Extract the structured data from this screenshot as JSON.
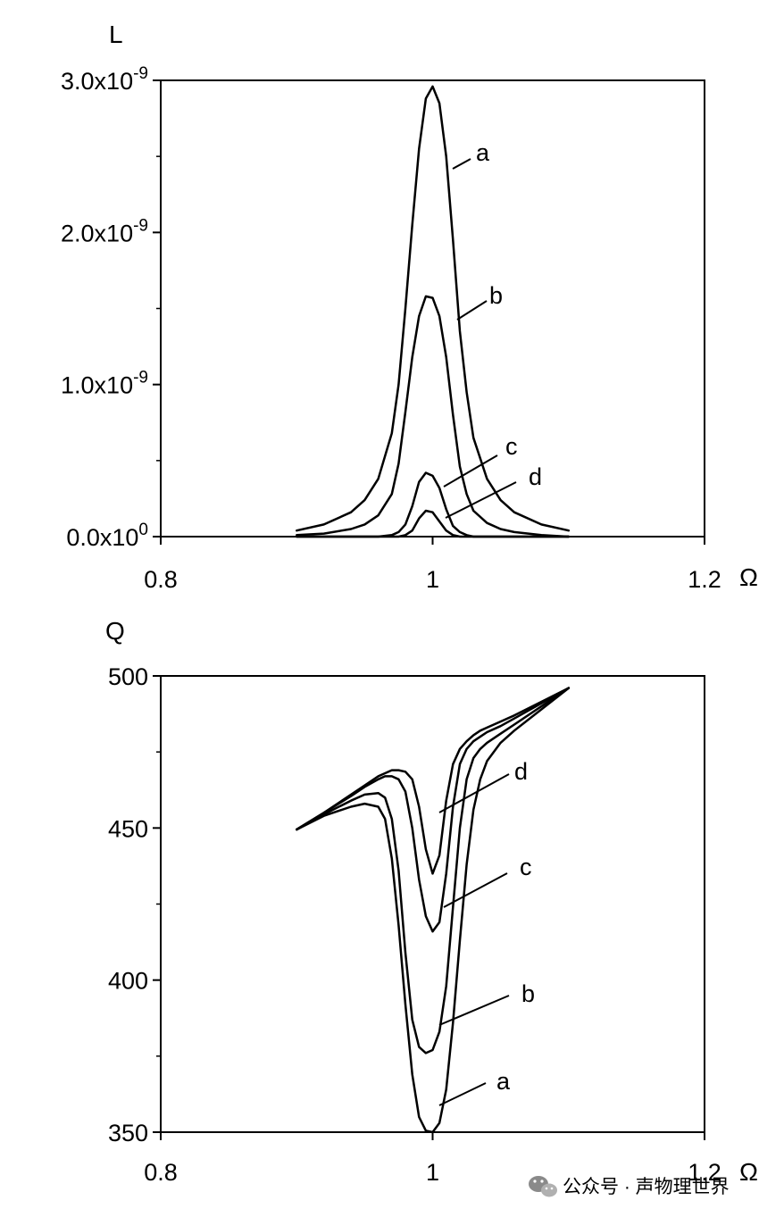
{
  "chart_data": [
    {
      "type": "line",
      "ylabel": "L",
      "xlabel": "Ω",
      "xlim": [
        0.8,
        1.2
      ],
      "ylim": [
        0,
        3e-09
      ],
      "x_ticks": [
        {
          "value": 0.8,
          "label": "0.8"
        },
        {
          "value": 1.0,
          "label": "1"
        },
        {
          "value": 1.2,
          "label": "1.2"
        }
      ],
      "y_ticks": [
        {
          "value": 0,
          "mantissa": "0.0x10",
          "exponent": "0"
        },
        {
          "value": 1e-09,
          "mantissa": "1.0x10",
          "exponent": "-9"
        },
        {
          "value": 2e-09,
          "mantissa": "2.0x10",
          "exponent": "-9"
        },
        {
          "value": 3e-09,
          "mantissa": "3.0x10",
          "exponent": "-9"
        }
      ],
      "minor_y_ticks": [
        5e-10,
        1.5e-09,
        2.5e-09
      ],
      "x": [
        0.9,
        0.92,
        0.94,
        0.95,
        0.96,
        0.97,
        0.975,
        0.98,
        0.985,
        0.99,
        0.995,
        1.0,
        1.005,
        1.01,
        1.015,
        1.02,
        1.025,
        1.03,
        1.04,
        1.05,
        1.06,
        1.08,
        1.1
      ],
      "series": [
        {
          "name": "a",
          "values": [
            4e-11,
            8e-11,
            1.6e-10,
            2.4e-10,
            3.8e-10,
            6.8e-10,
            1e-09,
            1.5e-09,
            2.05e-09,
            2.55e-09,
            2.88e-09,
            2.96e-09,
            2.85e-09,
            2.5e-09,
            1.95e-09,
            1.35e-09,
            9.5e-10,
            6.5e-10,
            3.8e-10,
            2.4e-10,
            1.6e-10,
            8e-11,
            4e-11
          ]
        },
        {
          "name": "b",
          "values": [
            1e-11,
            2e-11,
            5e-11,
            8e-11,
            1.4e-10,
            2.8e-10,
            4.8e-10,
            8.2e-10,
            1.18e-09,
            1.45e-09,
            1.58e-09,
            1.57e-09,
            1.45e-09,
            1.18e-09,
            8e-10,
            4.6e-10,
            2.8e-10,
            1.7e-10,
            9e-11,
            5e-11,
            3e-11,
            1e-11,
            0.0
          ]
        },
        {
          "name": "c",
          "values": [
            0.0,
            0.0,
            0.0,
            0.0,
            0.0,
            1e-11,
            3e-11,
            8e-11,
            2e-10,
            3.6e-10,
            4.2e-10,
            4e-10,
            3.2e-10,
            1.8e-10,
            7e-11,
            3e-11,
            1e-11,
            0.0,
            0.0,
            0.0,
            0.0,
            0.0,
            0.0
          ]
        },
        {
          "name": "d",
          "values": [
            0.0,
            0.0,
            0.0,
            0.0,
            0.0,
            0.0,
            0.0,
            1e-11,
            4e-11,
            1.2e-10,
            1.7e-10,
            1.6e-10,
            1e-10,
            4e-11,
            1e-11,
            0.0,
            0.0,
            0.0,
            0.0,
            0.0,
            0.0,
            0.0,
            0.0
          ]
        }
      ],
      "grid": false,
      "legend": "curve letters placed beside curves"
    },
    {
      "type": "line",
      "ylabel": "Q",
      "xlabel": "Ω",
      "xlim": [
        0.8,
        1.2
      ],
      "ylim": [
        350,
        500
      ],
      "x_ticks": [
        {
          "value": 0.8,
          "label": "0.8"
        },
        {
          "value": 1.0,
          "label": "1"
        },
        {
          "value": 1.2,
          "label": "1.2"
        }
      ],
      "y_ticks": [
        {
          "value": 350,
          "label": "350"
        },
        {
          "value": 400,
          "label": "400"
        },
        {
          "value": 450,
          "label": "450"
        },
        {
          "value": 500,
          "label": "500"
        }
      ],
      "minor_y_ticks": [
        375,
        425,
        475
      ],
      "x": [
        0.9,
        0.92,
        0.94,
        0.95,
        0.96,
        0.965,
        0.97,
        0.975,
        0.98,
        0.985,
        0.99,
        0.995,
        1.0,
        1.005,
        1.01,
        1.015,
        1.02,
        1.025,
        1.03,
        1.035,
        1.04,
        1.05,
        1.06,
        1.08,
        1.1
      ],
      "series": [
        {
          "name": "a",
          "values": [
            449.5,
            454.0,
            457.0,
            458.0,
            457.0,
            453.0,
            440.0,
            418.0,
            392.0,
            369.0,
            355.0,
            350.5,
            350.0,
            353.0,
            364.0,
            386.0,
            413.0,
            438.0,
            456.0,
            466.0,
            472.0,
            478.0,
            482.0,
            489.0,
            496.0
          ]
        },
        {
          "name": "b",
          "values": [
            449.5,
            454.5,
            459.0,
            461.0,
            461.5,
            460.0,
            453.0,
            436.0,
            409.0,
            387.0,
            378.0,
            376.0,
            377.0,
            383.0,
            398.0,
            424.0,
            450.0,
            466.0,
            473.0,
            476.0,
            478.0,
            481.0,
            484.0,
            490.0,
            496.0
          ]
        },
        {
          "name": "c",
          "values": [
            449.5,
            455.0,
            460.5,
            463.5,
            466.0,
            467.0,
            467.0,
            466.0,
            462.0,
            450.0,
            433.0,
            421.0,
            416.0,
            419.0,
            435.0,
            457.0,
            471.0,
            476.0,
            478.5,
            480.0,
            481.5,
            483.5,
            486.0,
            491.0,
            496.0
          ]
        },
        {
          "name": "d",
          "values": [
            449.5,
            455.0,
            461.0,
            464.0,
            467.0,
            468.0,
            469.0,
            469.0,
            468.5,
            466.0,
            457.0,
            443.0,
            435.0,
            441.0,
            459.0,
            471.0,
            476.0,
            478.5,
            480.5,
            482.0,
            483.0,
            485.0,
            487.0,
            491.5,
            496.0
          ]
        }
      ],
      "grid": false,
      "legend": "curve letters placed beside curves"
    }
  ],
  "watermark": {
    "icon": "wechat-logo-icon",
    "text": "公众号 · 声物理世界"
  }
}
